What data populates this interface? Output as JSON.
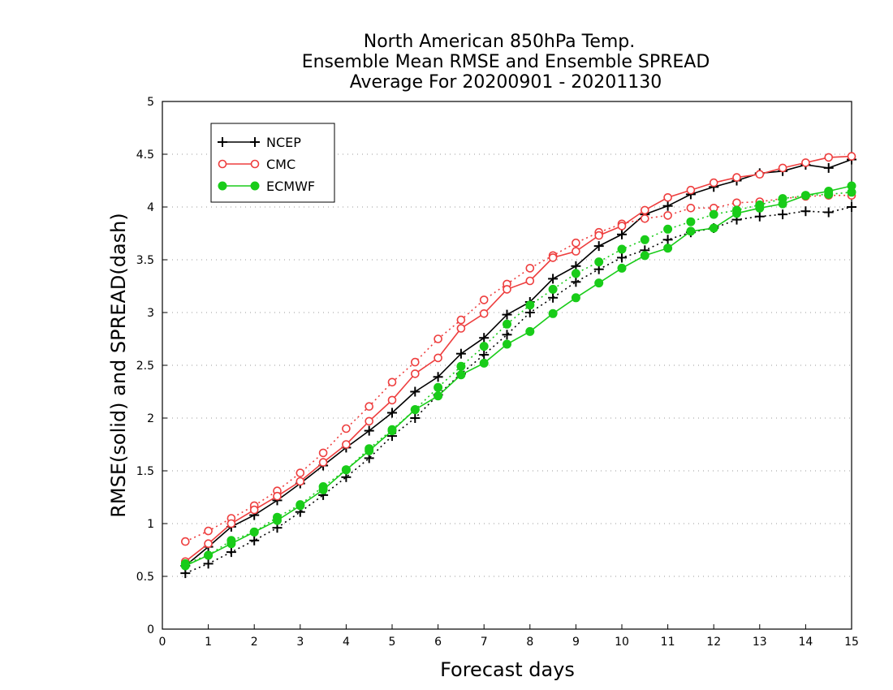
{
  "chart_data": {
    "type": "line",
    "title_lines": [
      "North American 850hPa Temp.",
      "Ensemble Mean RMSE and Ensemble SPREAD",
      "Average For 20200901 - 20201130"
    ],
    "xlabel": "Forecast days",
    "ylabel": "RMSE(solid) and SPREAD(dash)",
    "xlim": [
      0,
      15
    ],
    "ylim": [
      0,
      5
    ],
    "x_ticks": [
      0,
      1,
      2,
      3,
      4,
      5,
      6,
      7,
      8,
      9,
      10,
      11,
      12,
      13,
      14,
      15
    ],
    "y_ticks": [
      "0",
      "0.5",
      "1",
      "1.5",
      "2",
      "2.5",
      "3",
      "3.5",
      "4",
      "4.5",
      "5"
    ],
    "grid": "dotted horizontal",
    "legend_position": "top-left",
    "x": [
      0.5,
      1,
      1.5,
      2,
      2.5,
      3,
      3.5,
      4,
      4.5,
      5,
      5.5,
      6,
      6.5,
      7,
      7.5,
      8,
      8.5,
      9,
      9.5,
      10,
      10.5,
      11,
      11.5,
      12,
      12.5,
      13,
      13.5,
      14,
      14.5,
      15
    ],
    "series": [
      {
        "name": "NCEP",
        "color": "#000000",
        "marker": "plus",
        "rmse": [
          0.6,
          0.78,
          0.97,
          1.08,
          1.22,
          1.38,
          1.55,
          1.72,
          1.88,
          2.05,
          2.25,
          2.39,
          2.61,
          2.76,
          2.98,
          3.1,
          3.32,
          3.44,
          3.63,
          3.74,
          3.93,
          4.01,
          4.12,
          4.19,
          4.25,
          4.32,
          4.34,
          4.4,
          4.37,
          4.45
        ],
        "spread": [
          0.53,
          0.62,
          0.73,
          0.84,
          0.96,
          1.11,
          1.27,
          1.44,
          1.62,
          1.83,
          2.0,
          2.22,
          2.42,
          2.6,
          2.79,
          3.0,
          3.14,
          3.29,
          3.41,
          3.52,
          3.59,
          3.69,
          3.76,
          3.8,
          3.88,
          3.91,
          3.93,
          3.96,
          3.95,
          4.0
        ]
      },
      {
        "name": "CMC",
        "color": "#ee3e3e",
        "marker": "open-circle",
        "rmse": [
          0.64,
          0.81,
          1.0,
          1.13,
          1.26,
          1.4,
          1.58,
          1.75,
          1.97,
          2.17,
          2.42,
          2.57,
          2.85,
          2.99,
          3.22,
          3.3,
          3.52,
          3.58,
          3.73,
          3.82,
          3.97,
          4.09,
          4.16,
          4.23,
          4.28,
          4.31,
          4.37,
          4.42,
          4.47,
          4.48
        ],
        "spread": [
          0.83,
          0.93,
          1.05,
          1.17,
          1.31,
          1.48,
          1.67,
          1.9,
          2.11,
          2.34,
          2.53,
          2.75,
          2.93,
          3.12,
          3.27,
          3.42,
          3.54,
          3.66,
          3.76,
          3.84,
          3.89,
          3.92,
          3.99,
          3.99,
          4.04,
          4.05,
          4.08,
          4.1,
          4.11,
          4.11
        ]
      },
      {
        "name": "ECMWF",
        "color": "#19cc19",
        "marker": "filled-circle",
        "rmse": [
          0.6,
          0.7,
          0.81,
          0.92,
          1.03,
          1.17,
          1.32,
          1.51,
          1.69,
          1.88,
          2.08,
          2.21,
          2.41,
          2.52,
          2.7,
          2.82,
          2.99,
          3.14,
          3.28,
          3.42,
          3.54,
          3.61,
          3.77,
          3.8,
          3.94,
          3.99,
          4.03,
          4.11,
          4.15,
          4.2
        ],
        "spread": [
          0.62,
          0.7,
          0.84,
          0.92,
          1.06,
          1.18,
          1.35,
          1.51,
          1.71,
          1.89,
          2.08,
          2.29,
          2.49,
          2.68,
          2.89,
          3.07,
          3.22,
          3.37,
          3.48,
          3.6,
          3.69,
          3.79,
          3.86,
          3.93,
          3.97,
          4.02,
          4.08,
          4.11,
          4.12,
          4.14
        ]
      }
    ]
  }
}
